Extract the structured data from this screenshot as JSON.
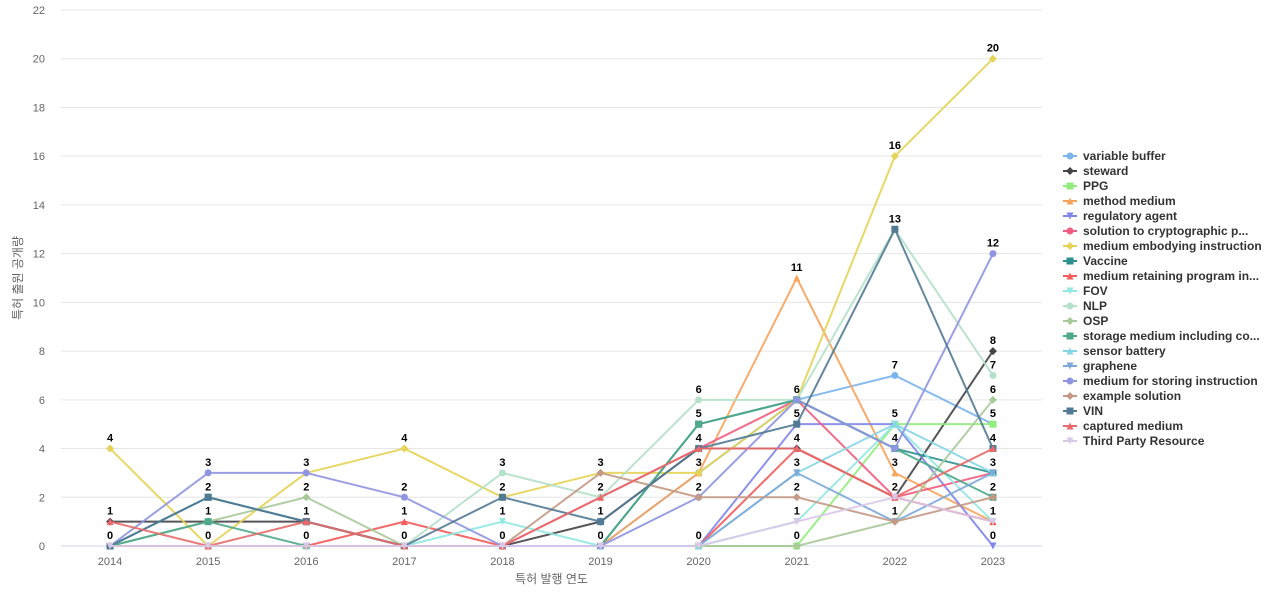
{
  "chart_data": {
    "type": "line",
    "xlabel": "특허 발행 연도",
    "ylabel": "특허 출원 공개량",
    "categories": [
      "2014",
      "2015",
      "2016",
      "2017",
      "2018",
      "2019",
      "2020",
      "2021",
      "2022",
      "2023"
    ],
    "ylim": [
      0,
      22
    ],
    "yticks": [
      0,
      2,
      4,
      6,
      8,
      10,
      12,
      14,
      16,
      18,
      20,
      22
    ],
    "grid": true,
    "legend_position": "right",
    "series": [
      {
        "name": "variable buffer",
        "color": "#7cb5ec",
        "marker": "circle",
        "values": [
          0,
          0,
          0,
          0,
          0,
          0,
          3,
          6,
          7,
          5
        ]
      },
      {
        "name": "steward",
        "color": "#434348",
        "marker": "diamond",
        "values": [
          1,
          1,
          1,
          0,
          0,
          1,
          4,
          4,
          2,
          8
        ]
      },
      {
        "name": "PPG",
        "color": "#90ed7d",
        "marker": "square",
        "values": [
          0,
          0,
          0,
          0,
          0,
          0,
          0,
          0,
          5,
          5
        ]
      },
      {
        "name": "method medium",
        "color": "#f7a35c",
        "marker": "triangle",
        "values": [
          0,
          0,
          0,
          0,
          0,
          0,
          3,
          11,
          3,
          1
        ]
      },
      {
        "name": "regulatory agent",
        "color": "#8085e9",
        "marker": "triangle-down",
        "values": [
          0,
          0,
          0,
          0,
          0,
          0,
          0,
          5,
          5,
          0
        ]
      },
      {
        "name": "solution to cryptographic p...",
        "color": "#f15c80",
        "marker": "circle",
        "values": [
          0,
          0,
          0,
          0,
          0,
          2,
          4,
          6,
          2,
          3
        ]
      },
      {
        "name": "medium embodying instruction",
        "color": "#e4d354",
        "marker": "diamond",
        "values": [
          4,
          0,
          3,
          4,
          2,
          3,
          3,
          6,
          16,
          20
        ]
      },
      {
        "name": "Vaccine",
        "color": "#2b908f",
        "marker": "square",
        "values": [
          0,
          2,
          1,
          0,
          0,
          0,
          5,
          6,
          4,
          3
        ]
      },
      {
        "name": "medium retaining program in...",
        "color": "#f45b5b",
        "marker": "triangle",
        "values": [
          0,
          0,
          0,
          1,
          0,
          0,
          0,
          4,
          2,
          1
        ]
      },
      {
        "name": "FOV",
        "color": "#91e8e1",
        "marker": "triangle-down",
        "values": [
          0,
          0,
          0,
          0,
          1,
          0,
          0,
          1,
          5,
          1
        ]
      },
      {
        "name": "NLP",
        "color": "#b5e0c9",
        "marker": "circle",
        "values": [
          0,
          0,
          0,
          0,
          3,
          2,
          6,
          6,
          13,
          7
        ]
      },
      {
        "name": "OSP",
        "color": "#a8c99a",
        "marker": "diamond",
        "values": [
          0,
          1,
          2,
          0,
          0,
          0,
          0,
          0,
          1,
          6
        ]
      },
      {
        "name": "storage medium including co...",
        "color": "#4fa98c",
        "marker": "square",
        "values": [
          0,
          1,
          0,
          0,
          0,
          0,
          5,
          6,
          4,
          2
        ]
      },
      {
        "name": "sensor battery",
        "color": "#86d6e6",
        "marker": "triangle",
        "values": [
          0,
          0,
          0,
          0,
          0,
          0,
          0,
          3,
          5,
          3
        ]
      },
      {
        "name": "graphene",
        "color": "#7ea8d8",
        "marker": "triangle-down",
        "values": [
          0,
          0,
          0,
          0,
          0,
          0,
          0,
          3,
          1,
          3
        ]
      },
      {
        "name": "medium for storing instruction",
        "color": "#8f95e0",
        "marker": "circle",
        "values": [
          0,
          3,
          3,
          2,
          0,
          0,
          2,
          6,
          4,
          12
        ]
      },
      {
        "name": "example solution",
        "color": "#c49a86",
        "marker": "diamond",
        "values": [
          0,
          0,
          0,
          0,
          0,
          3,
          2,
          2,
          1,
          2
        ]
      },
      {
        "name": "VIN",
        "color": "#527a94",
        "marker": "square",
        "values": [
          0,
          2,
          1,
          0,
          2,
          1,
          4,
          5,
          13,
          4
        ]
      },
      {
        "name": "captured medium",
        "color": "#e86a6a",
        "marker": "triangle",
        "values": [
          1,
          0,
          1,
          0,
          0,
          2,
          4,
          4,
          2,
          4
        ]
      },
      {
        "name": "Third Party Resource",
        "color": "#dac8e8",
        "marker": "triangle-down",
        "values": [
          0,
          0,
          0,
          0,
          0,
          0,
          0,
          1,
          2,
          1
        ]
      }
    ],
    "point_labels": [
      {
        "x": "2014",
        "y": 4,
        "text": "4"
      },
      {
        "x": "2014",
        "y": 1,
        "text": "1"
      },
      {
        "x": "2014",
        "y": 0,
        "text": "0"
      },
      {
        "x": "2015",
        "y": 3,
        "text": "3"
      },
      {
        "x": "2015",
        "y": 2,
        "text": "2"
      },
      {
        "x": "2015",
        "y": 1,
        "text": "1"
      },
      {
        "x": "2015",
        "y": 0,
        "text": "0"
      },
      {
        "x": "2016",
        "y": 3,
        "text": "3"
      },
      {
        "x": "2016",
        "y": 2,
        "text": "2"
      },
      {
        "x": "2016",
        "y": 1,
        "text": "1"
      },
      {
        "x": "2016",
        "y": 0,
        "text": "0"
      },
      {
        "x": "2017",
        "y": 4,
        "text": "4"
      },
      {
        "x": "2017",
        "y": 2,
        "text": "2"
      },
      {
        "x": "2017",
        "y": 1,
        "text": "1"
      },
      {
        "x": "2017",
        "y": 0,
        "text": "0"
      },
      {
        "x": "2018",
        "y": 3,
        "text": "3"
      },
      {
        "x": "2018",
        "y": 2,
        "text": "2"
      },
      {
        "x": "2018",
        "y": 1,
        "text": "1"
      },
      {
        "x": "2018",
        "y": 0,
        "text": "0"
      },
      {
        "x": "2019",
        "y": 3,
        "text": "3"
      },
      {
        "x": "2019",
        "y": 2,
        "text": "2"
      },
      {
        "x": "2019",
        "y": 1,
        "text": "1"
      },
      {
        "x": "2019",
        "y": 0,
        "text": "0"
      },
      {
        "x": "2020",
        "y": 6,
        "text": "6"
      },
      {
        "x": "2020",
        "y": 5,
        "text": "5"
      },
      {
        "x": "2020",
        "y": 4,
        "text": "4"
      },
      {
        "x": "2020",
        "y": 3,
        "text": "3"
      },
      {
        "x": "2020",
        "y": 2,
        "text": "2"
      },
      {
        "x": "2020",
        "y": 0,
        "text": "0"
      },
      {
        "x": "2021",
        "y": 11,
        "text": "11"
      },
      {
        "x": "2021",
        "y": 6,
        "text": "6"
      },
      {
        "x": "2021",
        "y": 5,
        "text": "5"
      },
      {
        "x": "2021",
        "y": 4,
        "text": "4"
      },
      {
        "x": "2021",
        "y": 3,
        "text": "3"
      },
      {
        "x": "2021",
        "y": 2,
        "text": "2"
      },
      {
        "x": "2021",
        "y": 1,
        "text": "1"
      },
      {
        "x": "2021",
        "y": 0,
        "text": "0"
      },
      {
        "x": "2022",
        "y": 16,
        "text": "16"
      },
      {
        "x": "2022",
        "y": 13,
        "text": "13"
      },
      {
        "x": "2022",
        "y": 7,
        "text": "7"
      },
      {
        "x": "2022",
        "y": 5,
        "text": "5"
      },
      {
        "x": "2022",
        "y": 4,
        "text": "4"
      },
      {
        "x": "2022",
        "y": 3,
        "text": "3"
      },
      {
        "x": "2022",
        "y": 2,
        "text": "2"
      },
      {
        "x": "2022",
        "y": 1,
        "text": "1"
      },
      {
        "x": "2023",
        "y": 20,
        "text": "20"
      },
      {
        "x": "2023",
        "y": 12,
        "text": "12"
      },
      {
        "x": "2023",
        "y": 8,
        "text": "8"
      },
      {
        "x": "2023",
        "y": 7,
        "text": "7"
      },
      {
        "x": "2023",
        "y": 6,
        "text": "6"
      },
      {
        "x": "2023",
        "y": 5,
        "text": "5"
      },
      {
        "x": "2023",
        "y": 4,
        "text": "4"
      },
      {
        "x": "2023",
        "y": 3,
        "text": "3"
      },
      {
        "x": "2023",
        "y": 2,
        "text": "2"
      },
      {
        "x": "2023",
        "y": 1,
        "text": "1"
      },
      {
        "x": "2023",
        "y": 0,
        "text": "0"
      }
    ]
  }
}
